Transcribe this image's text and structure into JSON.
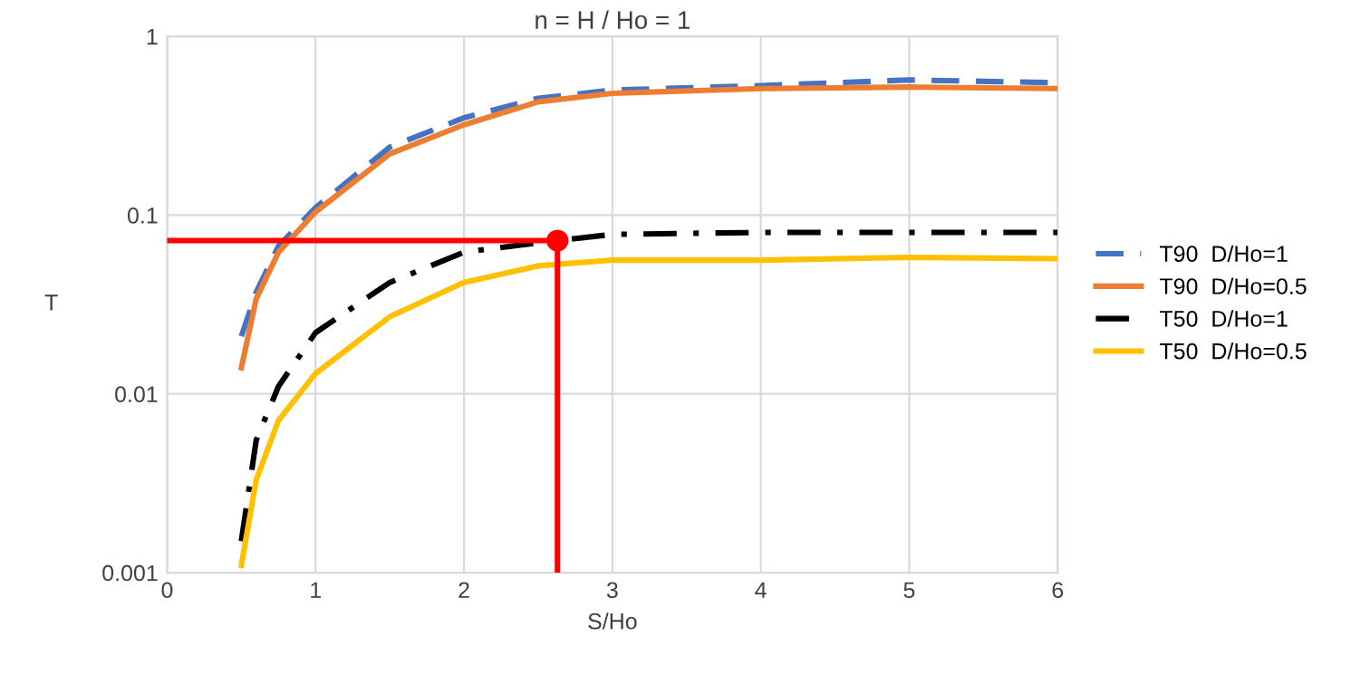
{
  "chart_data": {
    "type": "line",
    "title": "n = H / Ho = 1",
    "xlabel": "S/Ho",
    "ylabel": "T",
    "log": "y",
    "xlim": [
      0,
      6
    ],
    "xticks": [
      0,
      1,
      2,
      3,
      4,
      5,
      6
    ],
    "ylim": [
      0.001,
      1
    ],
    "yticks": [
      {
        "value": 0.001,
        "label": "0.001"
      },
      {
        "value": 0.01,
        "label": "0.01"
      },
      {
        "value": 0.1,
        "label": "0.1"
      },
      {
        "value": 1,
        "label": "1"
      }
    ],
    "grid": true,
    "legend": "right",
    "marker": "none",
    "series": [
      {
        "name": "T90  D/Ho=1",
        "color": "#4472c4",
        "line_style": "dashed",
        "x": [
          0.5,
          0.6,
          0.75,
          1,
          1.5,
          2,
          2.5,
          3,
          4,
          5,
          6
        ],
        "values": [
          0.021,
          0.037,
          0.067,
          0.11,
          0.24,
          0.35,
          0.45,
          0.5,
          0.53,
          0.57,
          0.55
        ]
      },
      {
        "name": "T90  D/Ho=0.5",
        "color": "#ed7d31",
        "line_style": "solid",
        "x": [
          0.5,
          0.6,
          0.75,
          1,
          1.5,
          2,
          2.5,
          3,
          4,
          5,
          6
        ],
        "values": [
          0.014,
          0.034,
          0.062,
          0.104,
          0.22,
          0.32,
          0.43,
          0.48,
          0.51,
          0.52,
          0.51
        ]
      },
      {
        "name": "T50  D/Ho=1",
        "color": "#000000",
        "line_style": "dashdot",
        "x": [
          0.5,
          0.6,
          0.75,
          1,
          1.5,
          2,
          2.5,
          3,
          4,
          5,
          6
        ],
        "values": [
          0.0015,
          0.0055,
          0.011,
          0.022,
          0.042,
          0.062,
          0.07,
          0.078,
          0.08,
          0.08,
          0.08
        ]
      },
      {
        "name": "T50  D/Ho=0.5",
        "color": "#ffc000",
        "line_style": "solid",
        "x": [
          0.5,
          0.6,
          0.75,
          1,
          1.5,
          2,
          2.5,
          3,
          4,
          5,
          6
        ],
        "values": [
          0.0011,
          0.0033,
          0.0071,
          0.013,
          0.027,
          0.042,
          0.052,
          0.056,
          0.056,
          0.058,
          0.057
        ]
      },
      {
        "color": "#ff0000",
        "line_style": "solid",
        "x": [
          0,
          2.63,
          2.63
        ],
        "values": [
          0.072,
          0.072,
          0.001
        ]
      },
      {
        "type": "scatter",
        "marker": "circle",
        "color": "#ff0000",
        "x": [
          2.63
        ],
        "values": [
          0.072
        ]
      }
    ]
  }
}
